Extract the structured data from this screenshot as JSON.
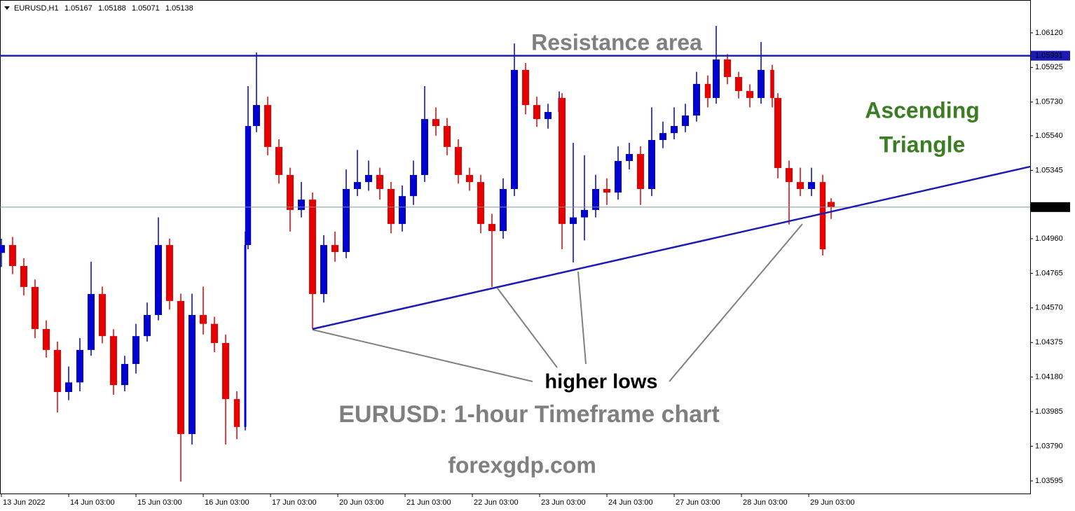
{
  "chart_data": {
    "type": "candlestick",
    "symbol": "EURUSD,H1",
    "up_color": "#0000d0",
    "down_color": "#e60000",
    "x": [
      0,
      4,
      8,
      12,
      16,
      20,
      24,
      28,
      32,
      36,
      40,
      44,
      48,
      52,
      56,
      60,
      64,
      68,
      72,
      76,
      80,
      84,
      87,
      88,
      91,
      95,
      99,
      103,
      107,
      111,
      115,
      119,
      123,
      127,
      131,
      135,
      139,
      143,
      147,
      151,
      155,
      159,
      163,
      167,
      171,
      175,
      179,
      183,
      187,
      191,
      195,
      199,
      200,
      204,
      208,
      212,
      216,
      220,
      224,
      228,
      232,
      236,
      240,
      244,
      248,
      252,
      255,
      259,
      263,
      267,
      271,
      275,
      277,
      281,
      285,
      289,
      293,
      296
    ],
    "open": [
      1.0488,
      1.04924,
      1.04806,
      1.04688,
      1.04451,
      1.04333,
      1.04096,
      1.0415,
      1.04333,
      1.04648,
      1.04411,
      1.04135,
      1.04254,
      1.04411,
      1.0453,
      1.04924,
      1.04609,
      1.03859,
      1.0453,
      1.0448,
      1.04372,
      1.04056,
      1.03899,
      1.04924,
      1.05595,
      1.05713,
      1.05477,
      1.05319,
      1.05122,
      1.0518,
      1.04648,
      1.04924,
      1.04885,
      1.0524,
      1.05279,
      1.05319,
      1.0524,
      1.05043,
      1.052,
      1.05319,
      1.05634,
      1.05595,
      1.05477,
      1.05319,
      1.05279,
      1.05043,
      1.05003,
      1.0524,
      1.05911,
      1.05713,
      1.05634,
      1.05674,
      1.05753,
      1.05043,
      1.0508,
      1.05122,
      1.0524,
      1.0522,
      1.05398,
      1.05437,
      1.0524,
      1.05516,
      1.05555,
      1.05595,
      1.05654,
      1.05832,
      1.05753,
      1.0597,
      1.05871,
      1.05792,
      1.05753,
      1.05911,
      1.05753,
      1.05358,
      1.05279,
      1.0524,
      1.05279,
      1.05167
    ],
    "high": [
      1.0496,
      1.0497,
      1.0485,
      1.0473,
      1.045,
      1.0438,
      1.0424,
      1.044,
      1.0483,
      1.0469,
      1.0445,
      1.043,
      1.0448,
      1.046,
      1.0508,
      1.0496,
      1.0465,
      1.0465,
      1.0469,
      1.0452,
      1.0442,
      1.041,
      1.05,
      1.0582,
      1.06009,
      1.0576,
      1.0552,
      1.0536,
      1.0528,
      1.0522,
      1.0498,
      1.05,
      1.0535,
      1.0546,
      1.054,
      1.0536,
      1.0528,
      1.0526,
      1.054,
      1.0582,
      1.057,
      1.0564,
      1.0552,
      1.0536,
      1.0532,
      1.051,
      1.053,
      1.0606,
      1.0595,
      1.0576,
      1.0572,
      1.0579,
      1.0578,
      1.055,
      1.0543,
      1.0532,
      1.053,
      1.0548,
      1.055,
      1.0548,
      1.057,
      1.0562,
      1.057,
      1.0572,
      1.059,
      1.0588,
      1.06159,
      1.06,
      1.059,
      1.0583,
      1.06068,
      1.0594,
      1.0578,
      1.054,
      1.0536,
      1.0536,
      1.0532,
      1.05188
    ],
    "low": [
      1.048,
      1.0476,
      1.0464,
      1.044,
      1.0429,
      1.0398,
      1.0405,
      1.041,
      1.043,
      1.0437,
      1.0408,
      1.041,
      1.042,
      1.0438,
      1.045,
      1.0456,
      1.03591,
      1.038,
      1.0442,
      1.0432,
      1.038,
      1.0383,
      1.0388,
      1.049,
      1.0556,
      1.0543,
      1.0527,
      1.05,
      1.0508,
      1.04451,
      1.046,
      1.0483,
      1.0485,
      1.052,
      1.0523,
      1.0518,
      1.0499,
      1.05,
      1.0515,
      1.0528,
      1.0554,
      1.0543,
      1.0527,
      1.0523,
      1.0499,
      1.04688,
      1.0496,
      1.052,
      1.0566,
      1.0559,
      1.0558,
      1.0562,
      1.049,
      1.04826,
      1.0495,
      1.0508,
      1.0515,
      1.0518,
      1.0535,
      1.0515,
      1.052,
      1.0547,
      1.0552,
      1.0556,
      1.0562,
      1.057,
      1.0572,
      1.0583,
      1.0575,
      1.057,
      1.0572,
      1.057,
      1.053,
      1.0504,
      1.052,
      1.052,
      1.04865,
      1.05071
    ],
    "close": [
      1.04924,
      1.04806,
      1.04688,
      1.04451,
      1.04333,
      1.04096,
      1.0415,
      1.04333,
      1.04648,
      1.04411,
      1.04135,
      1.04254,
      1.04411,
      1.0453,
      1.04924,
      1.04609,
      1.03859,
      1.0453,
      1.0448,
      1.04372,
      1.04056,
      1.03899,
      1.04924,
      1.05595,
      1.05713,
      1.05477,
      1.05319,
      1.05122,
      1.0518,
      1.04648,
      1.04924,
      1.04885,
      1.0524,
      1.05279,
      1.05319,
      1.0524,
      1.05043,
      1.052,
      1.05319,
      1.05634,
      1.05595,
      1.05477,
      1.05319,
      1.05279,
      1.05043,
      1.05003,
      1.0524,
      1.05911,
      1.05713,
      1.05634,
      1.05674,
      1.05753,
      1.05043,
      1.0508,
      1.05122,
      1.0524,
      1.0522,
      1.05398,
      1.05437,
      1.0524,
      1.05516,
      1.05555,
      1.05595,
      1.05654,
      1.05832,
      1.05753,
      1.0597,
      1.05871,
      1.05792,
      1.05753,
      1.05911,
      1.05753,
      1.05358,
      1.05279,
      1.0524,
      1.05279,
      1.049,
      1.05138
    ],
    "xlim": [
      -0.5,
      367
    ],
    "ylim": [
      1.03524,
      1.06305
    ],
    "xticks": [
      {
        "value": 0,
        "label": "13 Jun 2022"
      },
      {
        "value": 24,
        "label": "14 Jun 03:00"
      },
      {
        "value": 48,
        "label": "15 Jun 03:00"
      },
      {
        "value": 72,
        "label": "16 Jun 03:00"
      },
      {
        "value": 96,
        "label": "17 Jun 03:00"
      },
      {
        "value": 120,
        "label": "20 Jun 03:00"
      },
      {
        "value": 144,
        "label": "21 Jun 03:00"
      },
      {
        "value": 168,
        "label": "22 Jun 03:00"
      },
      {
        "value": 192,
        "label": "23 Jun 03:00"
      },
      {
        "value": 216,
        "label": "24 Jun 03:00"
      },
      {
        "value": 240,
        "label": "27 Jun 03:00"
      },
      {
        "value": 264,
        "label": "28 Jun 03:00"
      },
      {
        "value": 288,
        "label": "29 Jun 03:00"
      }
    ],
    "yticks": [
      {
        "value": 1.0612,
        "label": "1.06120"
      },
      1.05925,
      {
        "value": 1.0573,
        "label": "1.05730"
      },
      {
        "value": 1.0554,
        "label": "1.05540"
      },
      1.05345,
      {
        "value": 1.0496,
        "label": "1.04960"
      },
      1.04765,
      {
        "value": 1.0457,
        "label": "1.04570"
      },
      1.04375,
      {
        "value": 1.0418,
        "label": "1.04180"
      },
      1.03985,
      {
        "value": 1.0379,
        "label": "1.03790"
      },
      1.03595
    ],
    "resistance_level": 1.05991,
    "line_color": "#1c1cb4",
    "trendline": {
      "x": [
        111,
        367
      ],
      "y": [
        1.04451,
        1.05366
      ]
    },
    "annotations": {
      "resistance": "Resistance area",
      "pattern": [
        "Ascending",
        "Triangle"
      ],
      "lows": "higher lows",
      "caption": "EURUSD: 1-hour Timeframe chart",
      "source": "forexgdp.com"
    }
  }
}
